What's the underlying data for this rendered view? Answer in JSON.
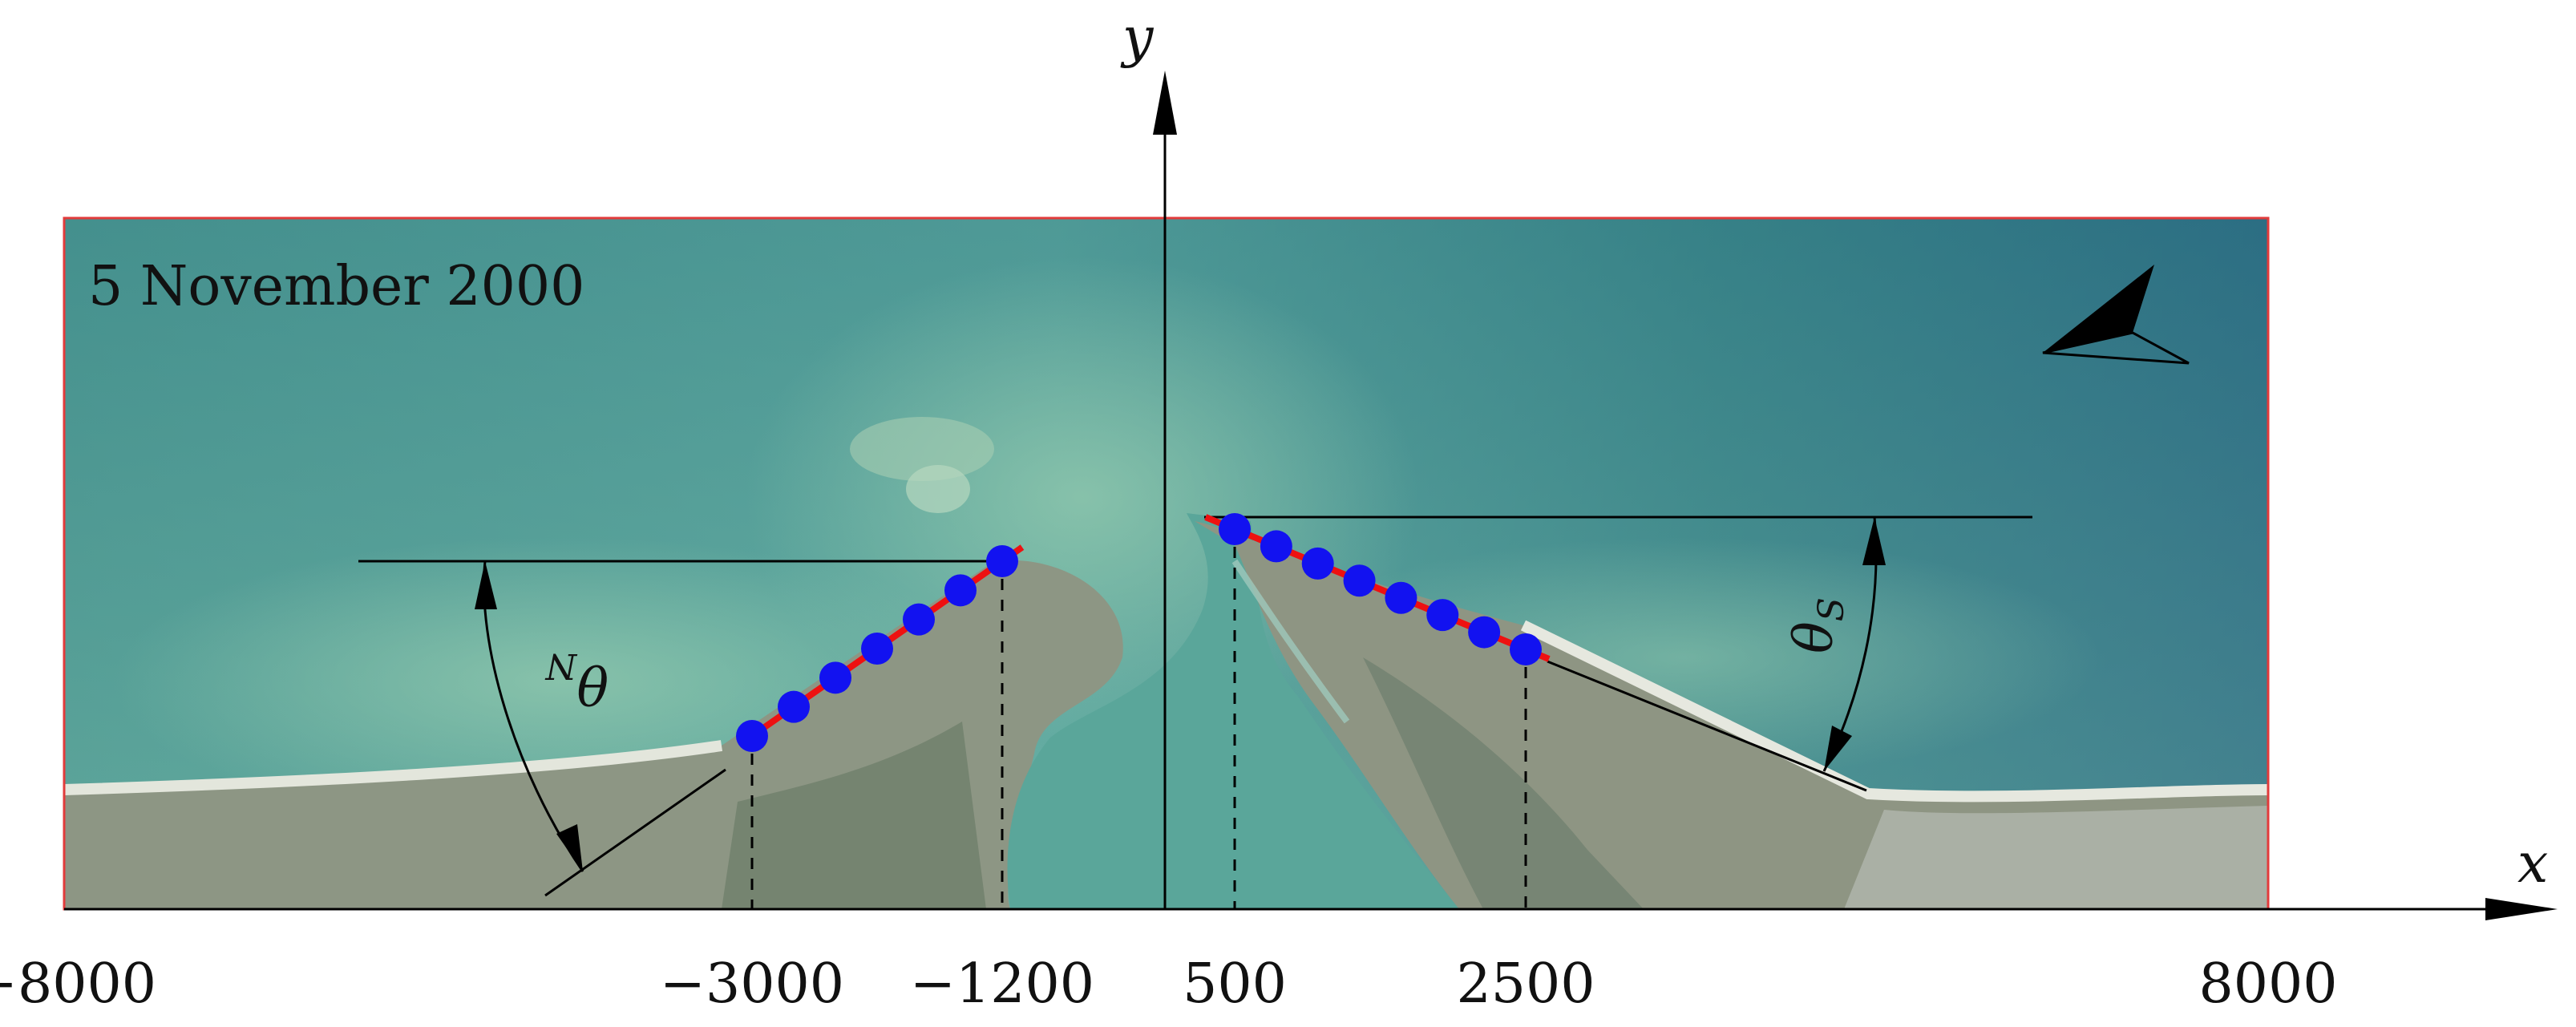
{
  "image": {
    "date_label": "5 November 2000",
    "description_colors": {
      "sea_light": "#6fb2a6",
      "sea_mid": "#3f8e88",
      "sea_deep": "#2d6f82",
      "land": "#8c9482",
      "beach": "#d9dcd2",
      "frame": "#e23b3b"
    }
  },
  "axes": {
    "x_label": "x",
    "y_label": "y",
    "x_ticks": [
      {
        "value": -8000,
        "label": "−8000"
      },
      {
        "value": -3000,
        "label": "−3000"
      },
      {
        "value": -1200,
        "label": "−1200"
      },
      {
        "value": 500,
        "label": "500"
      },
      {
        "value": 2500,
        "label": "2500"
      },
      {
        "value": 8000,
        "label": "8000"
      }
    ]
  },
  "angles": {
    "north_label": "θN",
    "north_symbol": "θ",
    "north_subscript": "N",
    "south_label": "θS",
    "south_symbol": "θ",
    "south_subscript": "S"
  },
  "shorelines": {
    "point_color": "#1212f0",
    "line_color": "#ee1111",
    "north": {
      "x_start": -3000,
      "x_end": -1200,
      "points": 7
    },
    "south": {
      "x_start": 500,
      "x_end": 2500,
      "points": 8
    }
  },
  "north_arrow_icon": "north-arrow-icon"
}
